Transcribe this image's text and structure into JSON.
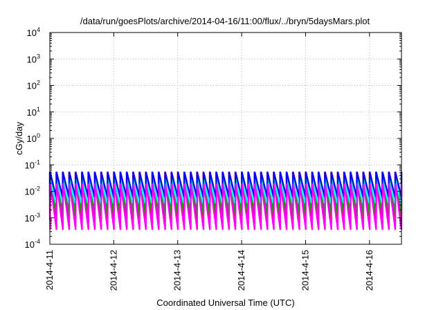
{
  "chart_data": {
    "type": "line",
    "title": "/data/run/goesPlots/archive/2014-04-16/11:00/flux/../bryn/5daysMars.plot",
    "xlabel": "Coordinated Universal Time (UTC)",
    "ylabel": "cGy/day",
    "xscale": "time",
    "yscale": "log",
    "xlim": [
      "2014-04-11T00:00",
      "2014-04-16T12:00"
    ],
    "ylim": [
      0.0001,
      10000
    ],
    "grid": true,
    "legend": "none",
    "x_ticks": [
      "2014-4-11",
      "2014-4-12",
      "2014-4-13",
      "2014-4-14",
      "2014-4-15",
      "2014-4-16"
    ],
    "y_ticks": [
      {
        "base": "10",
        "exp": "4",
        "value": 10000
      },
      {
        "base": "10",
        "exp": "3",
        "value": 1000
      },
      {
        "base": "10",
        "exp": "2",
        "value": 100
      },
      {
        "base": "10",
        "exp": "1",
        "value": 10
      },
      {
        "base": "10",
        "exp": "0",
        "value": 1
      },
      {
        "base": "10",
        "exp": "-1",
        "value": 0.1
      },
      {
        "base": "10",
        "exp": "-2",
        "value": 0.01
      },
      {
        "base": "10",
        "exp": "-3",
        "value": 0.001
      },
      {
        "base": "10",
        "exp": "-4",
        "value": 0.0001
      }
    ],
    "sawtooth_period_hours": 2.4,
    "series": [
      {
        "color": "#ff0000",
        "peak": 0.055,
        "trough": 0.0008
      },
      {
        "color": "#800080",
        "peak": 0.05,
        "trough": 0.0015
      },
      {
        "color": "#00aa00",
        "peak": 0.045,
        "trough": 0.0012
      },
      {
        "color": "#00ffff",
        "peak": 0.03,
        "trough": 0.0035
      },
      {
        "color": "#0000ff",
        "peak": 0.055,
        "trough": 0.006
      },
      {
        "color": "#ff00ff",
        "peak": 0.02,
        "trough": 0.00035
      }
    ]
  }
}
